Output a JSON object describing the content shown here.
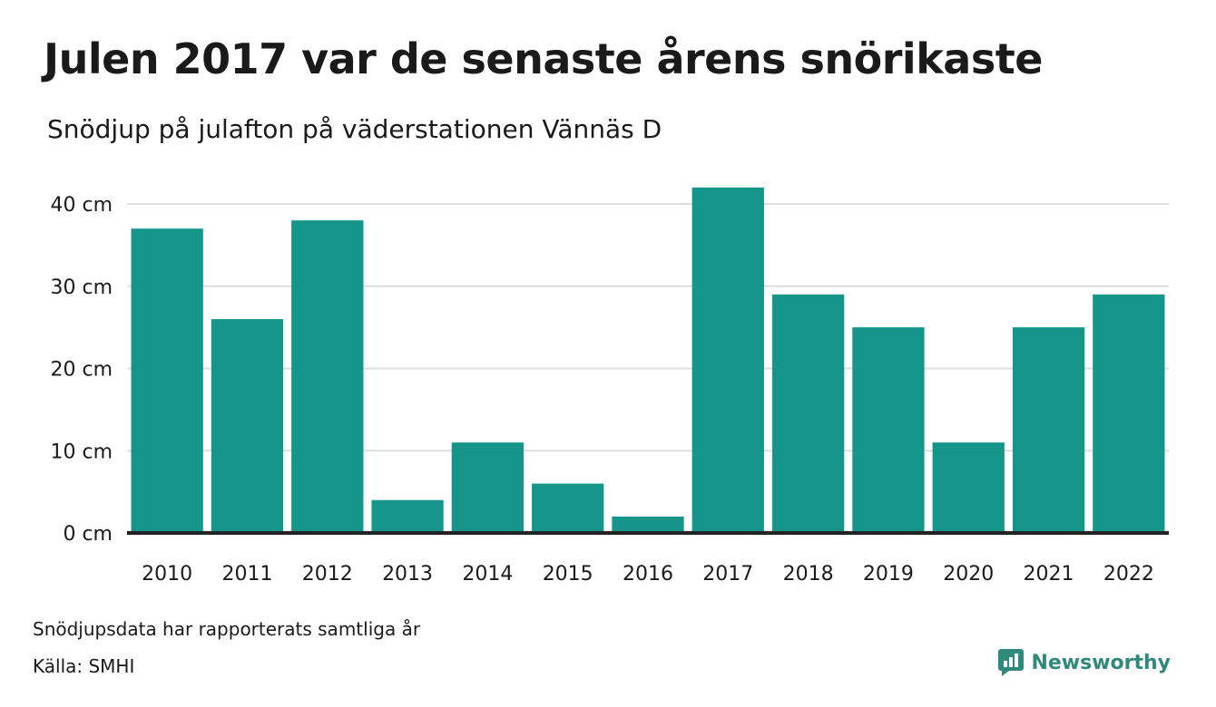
{
  "header": {
    "title": "Julen 2017 var de senaste årens snörikaste",
    "subtitle": "Snödjup på julafton på väderstationen Vännäs D"
  },
  "footer": {
    "note": "Snödjupsdata har rapporterats samtliga år",
    "source": "Källa: SMHI",
    "brand": "Newsworthy"
  },
  "colors": {
    "bar": "#16968a",
    "grid": "#dddddd",
    "baseline": "#222222",
    "brand": "#2f8a7b"
  },
  "chart_data": {
    "type": "bar",
    "title": "Julen 2017 var de senaste årens snörikaste",
    "subtitle": "Snödjup på julafton på väderstationen Vännäs D",
    "xlabel": "",
    "ylabel": "",
    "categories": [
      "2010",
      "2011",
      "2012",
      "2013",
      "2014",
      "2015",
      "2016",
      "2017",
      "2018",
      "2019",
      "2020",
      "2021",
      "2022"
    ],
    "values": [
      37,
      26,
      38,
      4,
      11,
      6,
      2,
      42,
      29,
      25,
      11,
      25,
      29
    ],
    "ylim": [
      0,
      40
    ],
    "yticks": [
      0,
      10,
      20,
      30,
      40
    ],
    "ytick_labels": [
      "0 cm",
      "10 cm",
      "20 cm",
      "30 cm",
      "40 cm"
    ],
    "unit": "cm",
    "grid": true,
    "legend": "none"
  }
}
